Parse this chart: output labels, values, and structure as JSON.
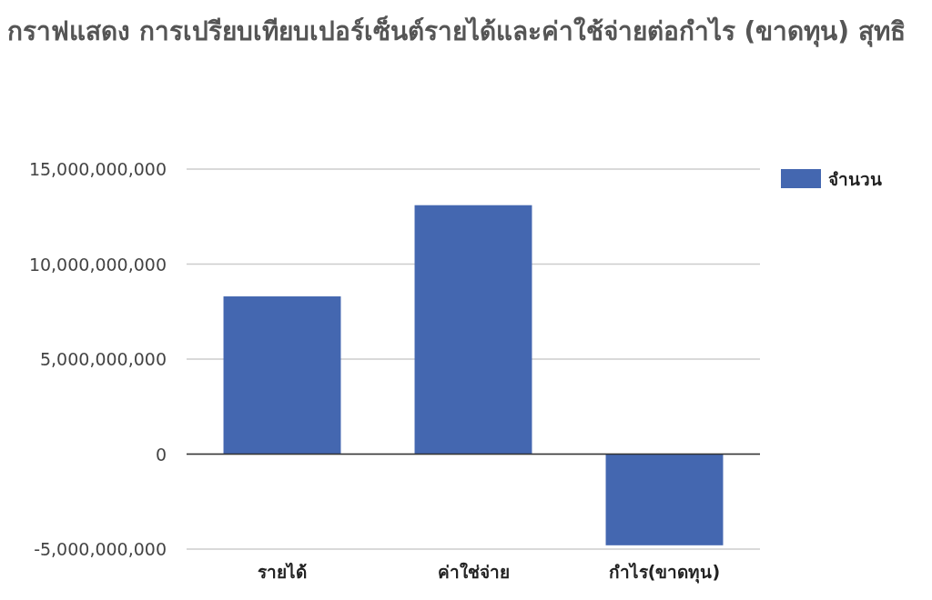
{
  "chart_data": {
    "type": "bar",
    "title": "กราฟแสดง การเปรียบเทียบเปอร์เซ็นต์รายได้และค่าใช้จ่ายต่อกำไร (ขาดทุน) สุทธิ",
    "categories": [
      "รายได้",
      "ค่าใช่จ่าย",
      "กำไร(ขาดทุน)"
    ],
    "series": [
      {
        "name": "จำนวน",
        "color": "#4467b0",
        "values": [
          8300000000,
          13100000000,
          -4800000000
        ]
      }
    ],
    "ylim": [
      -5000000000,
      15000000000
    ],
    "yticks": [
      {
        "value": -5000000000,
        "label": "-5,000,000,000"
      },
      {
        "value": 0,
        "label": "0"
      },
      {
        "value": 5000000000,
        "label": "5,000,000,000"
      },
      {
        "value": 10000000000,
        "label": "10,000,000,000"
      },
      {
        "value": 15000000000,
        "label": "15,000,000,000"
      }
    ],
    "grid": "y",
    "legend": "top right"
  }
}
